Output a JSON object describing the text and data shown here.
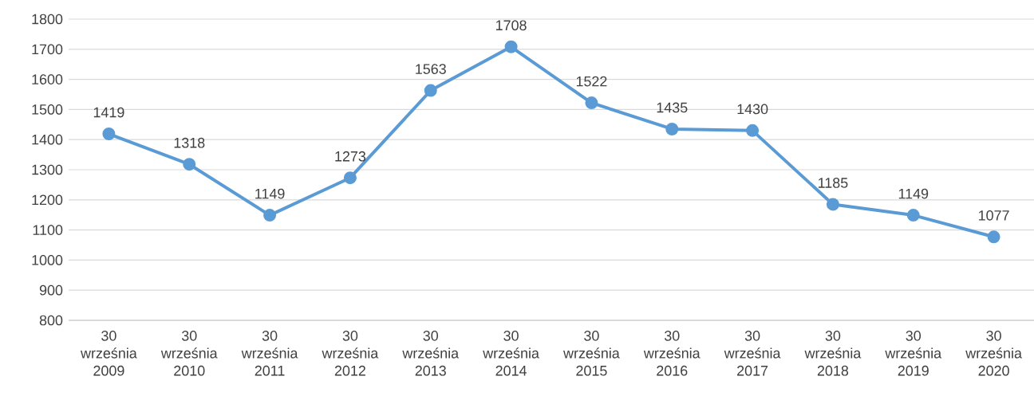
{
  "chart_data": {
    "type": "line",
    "categories": [
      "30 września 2009",
      "30 września 2010",
      "30 września 2011",
      "30 września 2012",
      "30 września 2013",
      "30 września 2014",
      "30 września 2015",
      "30 września 2016",
      "30 września 2017",
      "30 września 2018",
      "30 września 2019",
      "30 września 2020"
    ],
    "values": [
      1419,
      1318,
      1149,
      1273,
      1563,
      1708,
      1522,
      1435,
      1430,
      1185,
      1149,
      1077
    ],
    "color": "#5b9bd5",
    "ylim": [
      800,
      1800
    ],
    "yticks": [
      800,
      900,
      1000,
      1100,
      1200,
      1300,
      1400,
      1500,
      1600,
      1700,
      1800
    ],
    "grid": "y",
    "marker": "circle",
    "line_style": "solid",
    "data_labels": true
  }
}
